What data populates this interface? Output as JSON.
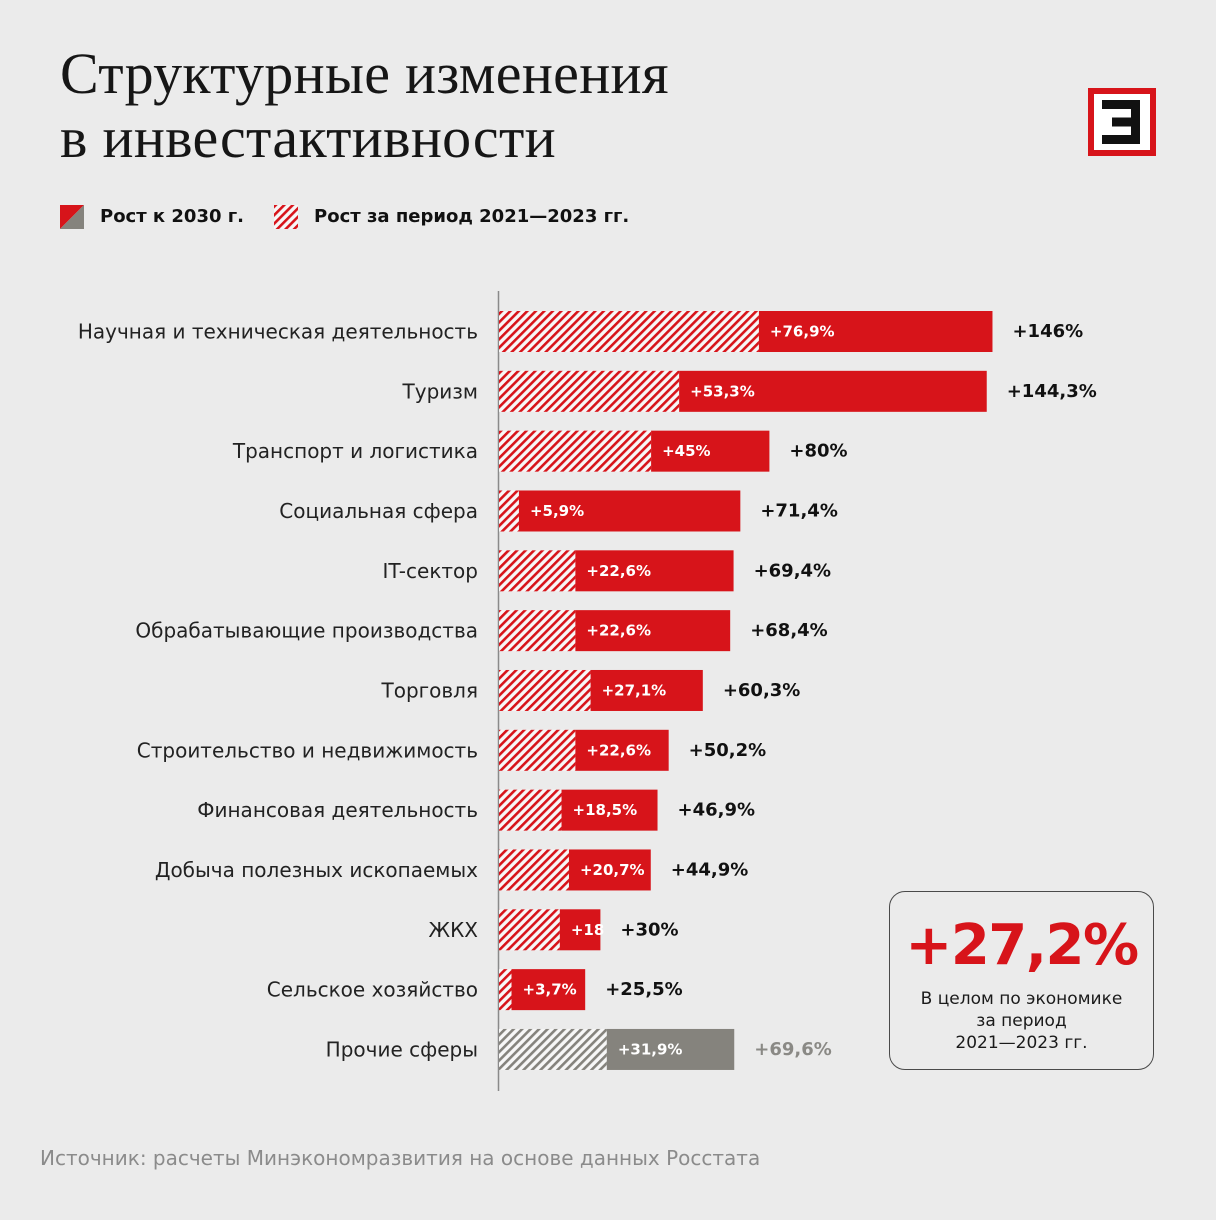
{
  "colors": {
    "accent": "#d7141a",
    "muted": "#85837d",
    "muted_text": "#8a8985",
    "text": "#111111",
    "background": "#ebebeb",
    "hatch_gap": "#f7f7f7"
  },
  "chart_data": {
    "type": "bar",
    "orientation": "horizontal",
    "legend": "top-left",
    "grid": false,
    "title_lines": [
      "Структурные изменения",
      "в инвестактивности"
    ],
    "categories": [
      "Научная и техническая деятельность",
      "Туризм",
      "Транспорт и логистика",
      "Социальная сфера",
      "IT-сектор",
      "Обрабатывающие производства",
      "Торговля",
      "Строительство и недвижимость",
      "Финансовая деятельность",
      "Добыча полезных ископаемых",
      "ЖКХ",
      "Сельское хозяйство",
      "Прочие сферы"
    ],
    "series": [
      {
        "name": "Рост к 2030 г.",
        "values": [
          146,
          144.3,
          80,
          71.4,
          69.4,
          68.4,
          60.3,
          50.2,
          46.9,
          44.9,
          30,
          25.5,
          69.6
        ],
        "labels": [
          "+146%",
          "+144,3%",
          "+80%",
          "+71,4%",
          "+69,4%",
          "+68,4%",
          "+60,3%",
          "+50,2%",
          "+46,9%",
          "+44,9%",
          "+30%",
          "+25,5%",
          "+69,6%"
        ]
      },
      {
        "name": "Рост за период 2021—2023 гг.",
        "values": [
          76.9,
          53.3,
          45,
          5.9,
          22.6,
          22.6,
          27.1,
          22.6,
          18.5,
          20.7,
          18,
          3.7,
          31.9
        ],
        "labels": [
          "+76,9%",
          "+53,3%",
          "+45%",
          "+5,9%",
          "+22,6%",
          "+22,6%",
          "+27,1%",
          "+22,6%",
          "+18,5%",
          "+20,7%",
          "+18",
          "+3,7%",
          "+31,9%"
        ]
      }
    ],
    "bar_colors": [
      "#d7141a",
      "#d7141a",
      "#d7141a",
      "#d7141a",
      "#d7141a",
      "#d7141a",
      "#d7141a",
      "#d7141a",
      "#d7141a",
      "#d7141a",
      "#d7141a",
      "#d7141a",
      "#85837d"
    ],
    "annotation": {
      "value": "+27,2%",
      "lines": [
        "В целом по экономике",
        "за период",
        "2021—2023 гг."
      ]
    },
    "source": "Источник: расчеты Минэкономразвития на основе данных Росстата"
  }
}
